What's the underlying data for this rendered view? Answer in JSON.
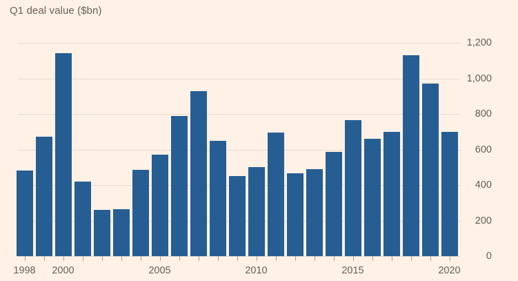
{
  "title": "Q1 deal value ($bn)",
  "chart_data": {
    "type": "bar",
    "title": "Q1 deal value ($bn)",
    "xlabel": "",
    "ylabel": "",
    "categories": [
      1998,
      1999,
      2000,
      2001,
      2002,
      2003,
      2004,
      2005,
      2006,
      2007,
      2008,
      2009,
      2010,
      2011,
      2012,
      2013,
      2014,
      2015,
      2016,
      2017,
      2018,
      2019,
      2020
    ],
    "values": [
      480,
      670,
      1140,
      420,
      260,
      265,
      485,
      570,
      790,
      930,
      650,
      450,
      500,
      695,
      465,
      490,
      585,
      765,
      660,
      700,
      1130,
      970,
      700
    ],
    "ylim": [
      0,
      1200
    ],
    "y_ticks": [
      0,
      200,
      400,
      600,
      800,
      1000,
      1200
    ],
    "y_tick_labels": [
      "0",
      "200",
      "400",
      "600",
      "800",
      "1,000",
      "1,200"
    ],
    "x_tick_years": [
      1998,
      2000,
      2005,
      2010,
      2015,
      2020
    ],
    "x_tick_labels": [
      "1998",
      "2000",
      "2005",
      "2010",
      "2015",
      "2020"
    ],
    "grid": "horizontal",
    "legend": "none",
    "y_axis_side": "right",
    "bar_color": "#265e93",
    "background_color": "#fff1e5",
    "gridline_color": "#e7d9cc",
    "tick_color": "#aba197",
    "text_color": "#66605c"
  }
}
